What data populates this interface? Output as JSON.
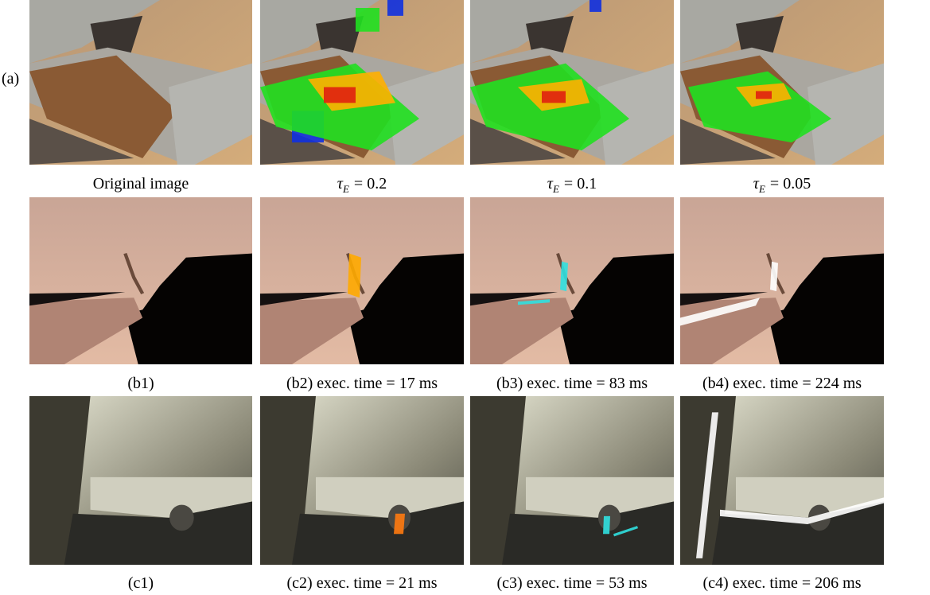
{
  "figure": {
    "row_label": "(a)",
    "row_a": [
      {
        "text": "Original image"
      },
      {
        "symbol": "τ",
        "subscript": "E",
        "text": "= 0.2"
      },
      {
        "symbol": "τ",
        "subscript": "E",
        "text": "= 0.1"
      },
      {
        "symbol": "τ",
        "subscript": "E",
        "text": "= 0.05"
      }
    ],
    "row_b": [
      "(b1)",
      "(b2) exec. time = 17 ms",
      "(b3) exec. time = 83 ms",
      "(b4) exec. time = 224 ms"
    ],
    "row_c": [
      "(c1)",
      "(c2) exec. time = 21 ms",
      "(c3) exec. time = 53 ms",
      "(c4) exec. time = 206 ms"
    ]
  }
}
